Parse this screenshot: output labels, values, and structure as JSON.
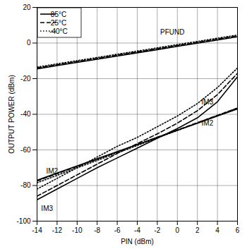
{
  "chart_data": {
    "type": "line",
    "xlabel": "PIN (dBm)",
    "ylabel": "OUTPUT POWER (dBm)",
    "x": [
      -14,
      -12,
      -10,
      -8,
      -6,
      -4,
      -2,
      0,
      2,
      4,
      6
    ],
    "xlim": [
      -14,
      6
    ],
    "xticks": [
      -14,
      -12,
      -10,
      -8,
      -6,
      -4,
      -2,
      0,
      2,
      4,
      6
    ],
    "ylim": [
      -100,
      20
    ],
    "yticks": [
      -100,
      -80,
      -60,
      -40,
      -20,
      0,
      20
    ],
    "grid": true,
    "legend": "top-left",
    "series": [
      {
        "name": "85°C",
        "color": "#000000",
        "line_style": "solid",
        "values": [
          -14.5,
          -12.7,
          -10.9,
          -9.1,
          -7.3,
          -5.5,
          -3.7,
          -1.9,
          -0.1,
          1.7,
          3.5
        ]
      },
      {
        "name": "25°C",
        "color": "#000000",
        "line_style": "dashed",
        "values": [
          -14,
          -12.2,
          -10.4,
          -8.6,
          -6.8,
          -5,
          -3.2,
          -1.4,
          0.4,
          2.2,
          4
        ]
      },
      {
        "name": "-40°C",
        "color": "#000000",
        "line_style": "dotted",
        "values": [
          -13.5,
          -11.7,
          -9.9,
          -8.1,
          -6.3,
          -4.5,
          -2.7,
          -0.9,
          0.9,
          2.7,
          4.5
        ]
      },
      {
        "name": "85°C",
        "color": "#000000",
        "line_style": "solid",
        "values": [
          -77,
          -73,
          -69,
          -65,
          -61,
          -57,
          -53,
          -49,
          -45,
          -41,
          -37
        ]
      },
      {
        "name": "25°C",
        "color": "#000000",
        "line_style": "dashed",
        "values": [
          -77.5,
          -73.4,
          -69.3,
          -65.2,
          -61.1,
          -57,
          -52.9,
          -48.8,
          -44.7,
          -40.6,
          -36.5
        ]
      },
      {
        "name": "-40°C",
        "color": "#000000",
        "line_style": "dotted",
        "values": [
          -78.5,
          -74.3,
          -70.1,
          -65.9,
          -61.7,
          -57.5,
          -53.3,
          -49.1,
          -44.9,
          -40.7,
          -36.5
        ]
      },
      {
        "name": "85°C",
        "color": "#000000",
        "line_style": "solid",
        "values": [
          -88,
          -82,
          -76,
          -70,
          -64.5,
          -59,
          -53.5,
          -48,
          -42,
          -33,
          -19
        ]
      },
      {
        "name": "25°C",
        "color": "#000000",
        "line_style": "dashed",
        "values": [
          -86,
          -80,
          -74,
          -68,
          -62,
          -56.5,
          -51,
          -45,
          -38,
          -29,
          -17
        ]
      },
      {
        "name": "-40°C",
        "color": "#000000",
        "line_style": "dotted",
        "values": [
          -82,
          -76,
          -70,
          -64,
          -58,
          -53,
          -47,
          -41,
          -34,
          -25,
          -14
        ]
      }
    ],
    "annotations": [
      {
        "text": "PFUND",
        "x": -0.5,
        "y": 6
      },
      {
        "text": "IM3",
        "x": 3,
        "y": -33
      },
      {
        "text": "IM2",
        "x": -12.5,
        "y": -72
      },
      {
        "text": "IM2",
        "x": 3,
        "y": -45
      },
      {
        "text": "IM3",
        "x": -13,
        "y": -93
      }
    ]
  }
}
